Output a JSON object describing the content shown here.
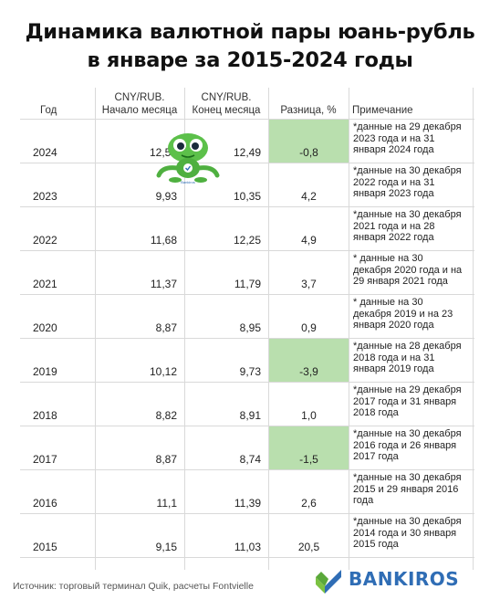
{
  "title": {
    "line1": "Динамика валютной пары юань-рубль",
    "line2": "в январе за 2015-2024 годы"
  },
  "headers": {
    "year": "Год",
    "start_l1": "CNY/RUB.",
    "start_l2": "Начало месяца",
    "end_l1": "CNY/RUB.",
    "end_l2": "Конец месяца",
    "diff": "Разница, %",
    "note": "Примечание"
  },
  "rows": [
    {
      "year": "2024",
      "start": "12,59",
      "end": "12,49",
      "diff": "-0,8",
      "highlight": true,
      "note": "*данные на 29 декабря\n2023 года и на 31\nянваря 2024 года"
    },
    {
      "year": "2023",
      "start": "9,93",
      "end": "10,35",
      "diff": "4,2",
      "highlight": false,
      "note": "*данные на 30 декабря\n2022 года и на 31\nянваря 2023 года"
    },
    {
      "year": "2022",
      "start": "11,68",
      "end": "12,25",
      "diff": "4,9",
      "highlight": false,
      "note": "*данные на 30 декабря\n2021 года и на 28\nянваря 2022 года"
    },
    {
      "year": "2021",
      "start": "11,37",
      "end": "11,79",
      "diff": "3,7",
      "highlight": false,
      "note": "* данные на 30\nдекабря 2020 года и на\n29 января 2021 года"
    },
    {
      "year": "2020",
      "start": "8,87",
      "end": "8,95",
      "diff": "0,9",
      "highlight": false,
      "note": "* данные на 30\nдекабря 2019 и на 23\nянваря 2020  года"
    },
    {
      "year": "2019",
      "start": "10,12",
      "end": "9,73",
      "diff": "-3,9",
      "highlight": true,
      "note": "*данные на 28 декабря\n2018 года и на 31\nянваря 2019 года"
    },
    {
      "year": "2018",
      "start": "8,82",
      "end": "8,91",
      "diff": "1,0",
      "highlight": false,
      "note": "*данные на 29 декабря\n2017 года и 31 января\n2018 года"
    },
    {
      "year": "2017",
      "start": "8,87",
      "end": "8,74",
      "diff": "-1,5",
      "highlight": true,
      "note": "*данные на 30 декабря\n2016 года и 26 января\n2017 года"
    },
    {
      "year": "2016",
      "start": "11,1",
      "end": "11,39",
      "diff": "2,6",
      "highlight": false,
      "note": "*данные на 30 декабря\n2015 и 29 января 2016\nгода"
    },
    {
      "year": "2015",
      "start": "9,15",
      "end": "11,03",
      "diff": "20,5",
      "highlight": false,
      "note": "*данные на 30 декабря\n2014 года и 30 января\n2015 года"
    }
  ],
  "mascot_caption": "Bankiros",
  "footer": {
    "source": "Источник: торговый терминал Quik, расчеты Fontvielle",
    "brand": "BANKIROS"
  },
  "colors": {
    "highlight": "#b9dfae",
    "brand_blue": "#2f6db5",
    "brand_green": "#7cc242"
  },
  "icons": {
    "mascot": "frog-mascot-icon",
    "logo": "bankiros-check-logo-icon"
  }
}
